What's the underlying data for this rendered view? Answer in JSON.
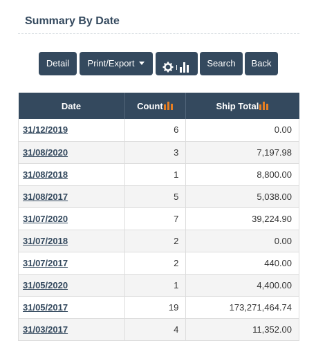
{
  "page": {
    "title": "Summary By Date"
  },
  "toolbar": {
    "detail_label": "Detail",
    "print_label": "Print/Export",
    "search_label": "Search",
    "back_label": "Back"
  },
  "table": {
    "columns": [
      "Date",
      "Count",
      "Ship Total"
    ],
    "rows": [
      {
        "date": "31/12/2019",
        "count": "6",
        "ship_total": "0.00"
      },
      {
        "date": "31/08/2020",
        "count": "3",
        "ship_total": "7,197.98"
      },
      {
        "date": "31/08/2018",
        "count": "1",
        "ship_total": "8,800.00"
      },
      {
        "date": "31/08/2017",
        "count": "5",
        "ship_total": "5,038.00"
      },
      {
        "date": "31/07/2020",
        "count": "7",
        "ship_total": "39,224.90"
      },
      {
        "date": "31/07/2018",
        "count": "2",
        "ship_total": "0.00"
      },
      {
        "date": "31/07/2017",
        "count": "2",
        "ship_total": "440.00"
      },
      {
        "date": "31/05/2020",
        "count": "1",
        "ship_total": "4,400.00"
      },
      {
        "date": "31/05/2017",
        "count": "19",
        "ship_total": "173,271,464.74"
      },
      {
        "date": "31/03/2017",
        "count": "4",
        "ship_total": "11,352.00"
      }
    ]
  },
  "colors": {
    "primary": "#34495e",
    "chart_icon": "#e67e22"
  },
  "icons": {
    "settings": "gear-icon",
    "chart": "bar-chart-icon",
    "sort": "bar-chart-icon"
  }
}
